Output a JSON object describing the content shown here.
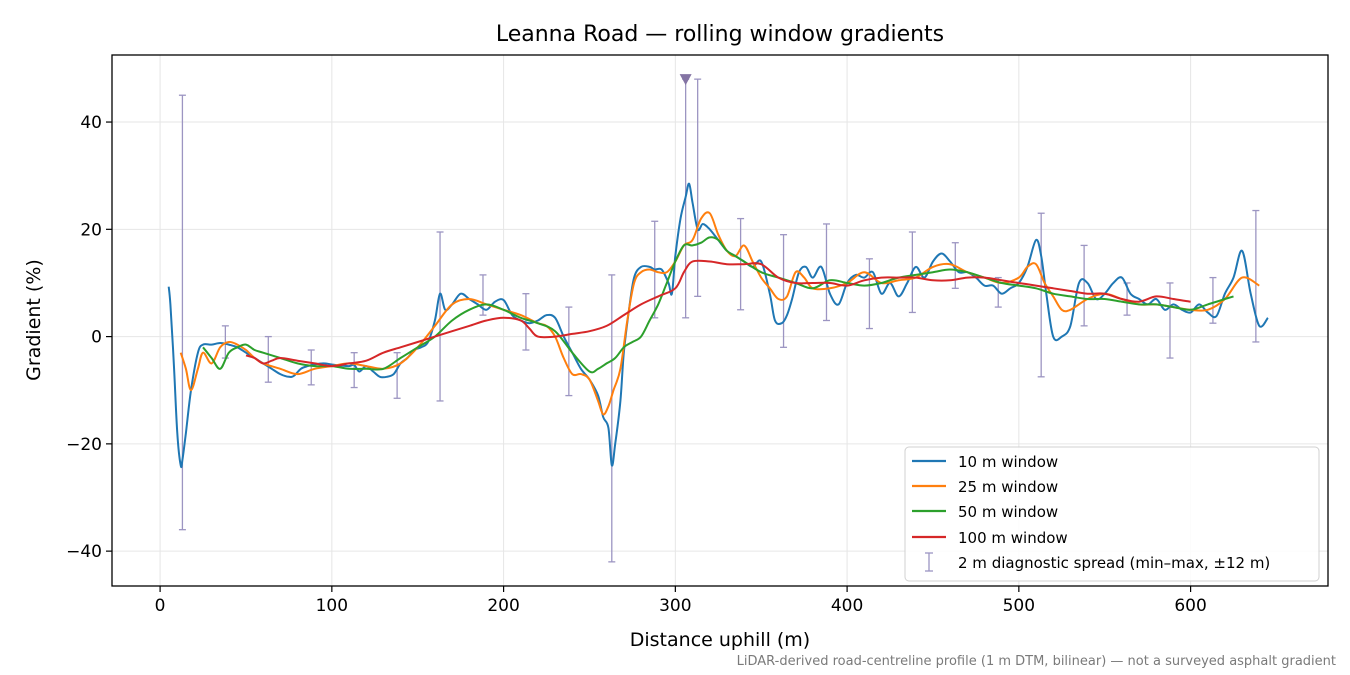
{
  "chart_data": {
    "type": "line",
    "title": "Leanna Road — rolling window gradients",
    "xlabel": "Distance uphill (m)",
    "ylabel": "Gradient (%)",
    "xlim": [
      -28,
      680
    ],
    "ylim": [
      -46.5,
      52.5
    ],
    "xticks": [
      0,
      100,
      200,
      300,
      400,
      500,
      600
    ],
    "yticks": [
      -40,
      -20,
      0,
      20,
      40
    ],
    "grid": true,
    "legend_position": "lower-right",
    "footnote": "LiDAR-derived road-centreline profile (1 m DTM, bilinear) — not a surveyed asphalt gradient",
    "series": [
      {
        "name": "10 m window",
        "color": "#1f77b4",
        "x": [
          5,
          6,
          8,
          10,
          12,
          13,
          15,
          18,
          22,
          25,
          30,
          35,
          40,
          45,
          50,
          55,
          60,
          65,
          70,
          75,
          78,
          82,
          86,
          90,
          95,
          100,
          105,
          110,
          113,
          116,
          120,
          124,
          128,
          132,
          136,
          140,
          144,
          148,
          152,
          156,
          160,
          163,
          166,
          170,
          175,
          180,
          185,
          190,
          195,
          200,
          205,
          210,
          215,
          220,
          225,
          230,
          235,
          240,
          245,
          250,
          255,
          258,
          261,
          263,
          265,
          268,
          270,
          273,
          276,
          280,
          285,
          288,
          292,
          296,
          298,
          300,
          303,
          306,
          308,
          310,
          313,
          316,
          320,
          325,
          330,
          335,
          340,
          345,
          350,
          355,
          358,
          362,
          365,
          368,
          372,
          376,
          380,
          385,
          390,
          395,
          400,
          405,
          410,
          415,
          420,
          425,
          430,
          435,
          440,
          445,
          450,
          455,
          460,
          465,
          470,
          475,
          480,
          485,
          490,
          495,
          500,
          505,
          510,
          513,
          516,
          520,
          525,
          530,
          535,
          540,
          545,
          550,
          555,
          560,
          565,
          570,
          575,
          580,
          585,
          590,
          595,
          600,
          605,
          610,
          615,
          620,
          625,
          630,
          635,
          640,
          645
        ],
        "values": [
          9.3,
          6,
          -5,
          -18,
          -24,
          -23,
          -18,
          -10,
          -3,
          -1.5,
          -1.5,
          -1.2,
          -1.5,
          -2,
          -3,
          -4,
          -5,
          -6,
          -7,
          -7.5,
          -7.3,
          -6,
          -5.5,
          -5.2,
          -5,
          -5.2,
          -5.4,
          -5.5,
          -5.3,
          -6.5,
          -5.5,
          -6.5,
          -7.5,
          -7.5,
          -7,
          -5,
          -4,
          -2.5,
          -2,
          -1,
          3,
          8,
          5,
          6,
          8,
          7,
          6,
          5,
          6.5,
          6.8,
          4,
          3,
          2.5,
          3,
          4,
          3.5,
          0,
          -3,
          -6,
          -8,
          -11,
          -15,
          -17,
          -24,
          -20,
          -12,
          -3,
          5,
          11,
          13,
          13,
          12.5,
          12.5,
          10,
          8,
          15,
          22,
          26,
          28.5,
          25,
          20,
          21,
          20,
          18,
          16,
          15,
          14,
          13,
          14,
          8,
          3,
          2.5,
          4,
          7,
          12,
          13,
          11,
          13,
          8,
          6,
          10,
          11.5,
          11,
          12,
          8,
          10,
          7.5,
          10,
          13,
          11,
          14,
          15.5,
          14,
          12,
          12,
          11,
          9.5,
          9.5,
          8,
          9,
          10,
          13,
          18,
          15,
          8,
          0,
          0,
          2,
          10,
          10,
          7,
          8,
          10,
          11,
          8,
          7,
          6,
          7,
          5,
          6,
          5,
          4.5,
          6,
          4.5,
          3.8,
          8,
          11,
          16,
          8,
          2,
          3.5
        ],
        "linewidth": 2
      },
      {
        "name": "25 m window",
        "color": "#ff7f0e",
        "x": [
          12,
          15,
          18,
          22,
          25,
          30,
          35,
          40,
          45,
          50,
          55,
          60,
          70,
          80,
          90,
          100,
          110,
          120,
          130,
          140,
          150,
          160,
          170,
          180,
          190,
          200,
          210,
          220,
          225,
          230,
          235,
          240,
          245,
          250,
          255,
          258,
          261,
          264,
          268,
          272,
          276,
          280,
          285,
          290,
          295,
          300,
          305,
          310,
          315,
          320,
          325,
          330,
          335,
          340,
          345,
          350,
          355,
          360,
          365,
          370,
          375,
          380,
          390,
          400,
          410,
          420,
          430,
          440,
          450,
          460,
          470,
          480,
          490,
          500,
          505,
          510,
          515,
          520,
          525,
          530,
          540,
          550,
          560,
          570,
          580,
          590,
          600,
          610,
          620,
          630,
          640
        ],
        "values": [
          -3,
          -6,
          -10,
          -6,
          -3,
          -5,
          -2,
          -1,
          -1.5,
          -2.5,
          -4,
          -5,
          -6,
          -7,
          -6,
          -5.5,
          -5,
          -5.5,
          -6,
          -5,
          -2,
          2,
          6,
          7,
          6,
          5,
          4,
          2.5,
          2,
          0,
          -4,
          -7,
          -7,
          -8,
          -12,
          -14.5,
          -13,
          -10,
          -6,
          3,
          10,
          12,
          12.5,
          12,
          12,
          14,
          17,
          18,
          22,
          23,
          19,
          16,
          15,
          17,
          14,
          11,
          9,
          7,
          7.5,
          12,
          11,
          9,
          9,
          10,
          12,
          10,
          10.5,
          11,
          13,
          13.5,
          12,
          11,
          10,
          11,
          13,
          13.5,
          10,
          7.5,
          5,
          5,
          7,
          8,
          7,
          6,
          6,
          5.5,
          5,
          5,
          7,
          11,
          9.5
        ],
        "linewidth": 2
      },
      {
        "name": "50 m window",
        "color": "#2ca02c",
        "x": [
          25,
          30,
          35,
          40,
          45,
          50,
          55,
          60,
          70,
          80,
          90,
          100,
          110,
          120,
          130,
          140,
          150,
          160,
          170,
          180,
          190,
          200,
          210,
          220,
          230,
          240,
          250,
          255,
          260,
          265,
          270,
          275,
          280,
          285,
          290,
          295,
          300,
          305,
          310,
          315,
          320,
          325,
          330,
          335,
          340,
          350,
          360,
          370,
          380,
          390,
          400,
          410,
          420,
          430,
          440,
          450,
          460,
          470,
          480,
          490,
          500,
          510,
          520,
          530,
          540,
          550,
          560,
          570,
          580,
          590,
          600,
          610,
          620,
          625
        ],
        "values": [
          -2,
          -4,
          -6,
          -3,
          -2,
          -1.5,
          -2.5,
          -3,
          -4,
          -5,
          -5.5,
          -5.5,
          -6,
          -6,
          -6,
          -4,
          -2,
          0,
          3,
          5,
          6,
          5,
          3.5,
          2.5,
          1,
          -3,
          -6.5,
          -6,
          -5,
          -4,
          -2,
          -1,
          0,
          3,
          6,
          10,
          14,
          17,
          17,
          17.5,
          18.5,
          18,
          16,
          15,
          14,
          12,
          11,
          10,
          9,
          10.5,
          10,
          9.5,
          10,
          11,
          11.5,
          12,
          12.5,
          12,
          11,
          10,
          9.5,
          9,
          8,
          7.5,
          7,
          7,
          6.5,
          6,
          6,
          5.5,
          5,
          6,
          7,
          7.5
        ],
        "linewidth": 2
      },
      {
        "name": "100 m window",
        "color": "#d62728",
        "x": [
          50,
          55,
          60,
          65,
          70,
          80,
          90,
          100,
          110,
          120,
          130,
          140,
          150,
          160,
          170,
          180,
          190,
          200,
          210,
          215,
          220,
          230,
          240,
          250,
          260,
          270,
          280,
          290,
          300,
          305,
          310,
          320,
          330,
          340,
          350,
          360,
          370,
          380,
          390,
          400,
          410,
          420,
          430,
          440,
          450,
          460,
          470,
          480,
          490,
          500,
          510,
          520,
          530,
          540,
          550,
          560,
          570,
          580,
          590,
          600
        ],
        "values": [
          -3.5,
          -4,
          -5,
          -4.5,
          -4,
          -4.5,
          -5,
          -5.5,
          -5,
          -4.5,
          -3,
          -2,
          -1,
          0,
          1,
          2,
          3,
          3.5,
          3,
          1.5,
          0,
          0,
          0.5,
          1,
          2,
          4,
          6,
          7.5,
          9,
          12,
          14,
          14,
          13.5,
          13.5,
          13.5,
          11,
          10,
          10,
          10,
          9.5,
          10.5,
          11,
          11,
          11,
          10.5,
          10.5,
          11,
          11,
          10.5,
          10,
          9.5,
          9,
          8.5,
          8,
          8,
          7,
          6.5,
          7.5,
          7,
          6.5
        ],
        "linewidth": 2
      }
    ],
    "errorbars": {
      "name": "2 m diagnostic spread (min–max, ±12 m)",
      "color": "#9c95c2",
      "x": [
        13,
        38,
        63,
        88,
        113,
        138,
        163,
        188,
        213,
        238,
        263,
        288,
        306,
        313,
        338,
        363,
        388,
        413,
        438,
        463,
        488,
        513,
        538,
        563,
        588,
        613,
        638
      ],
      "low": [
        -36,
        -4,
        -8.5,
        -9,
        -9.5,
        -11.5,
        -12,
        4,
        -2.5,
        -11,
        -42,
        3.5,
        3.5,
        7.5,
        5,
        -2,
        3,
        1.5,
        4.5,
        9,
        5.5,
        -7.5,
        2,
        4,
        -4,
        2.5,
        -1
      ],
      "high": [
        45,
        2,
        0,
        -2.5,
        -3,
        -3,
        19.5,
        11.5,
        8,
        5.5,
        11.5,
        21.5,
        48,
        48,
        22,
        19,
        21,
        14.5,
        19.5,
        17.5,
        11,
        23,
        17,
        10,
        10,
        11,
        23.5
      ]
    },
    "marker": {
      "x": 306,
      "y": 48,
      "shape": "triangle-down",
      "color": "#8474a4"
    }
  }
}
